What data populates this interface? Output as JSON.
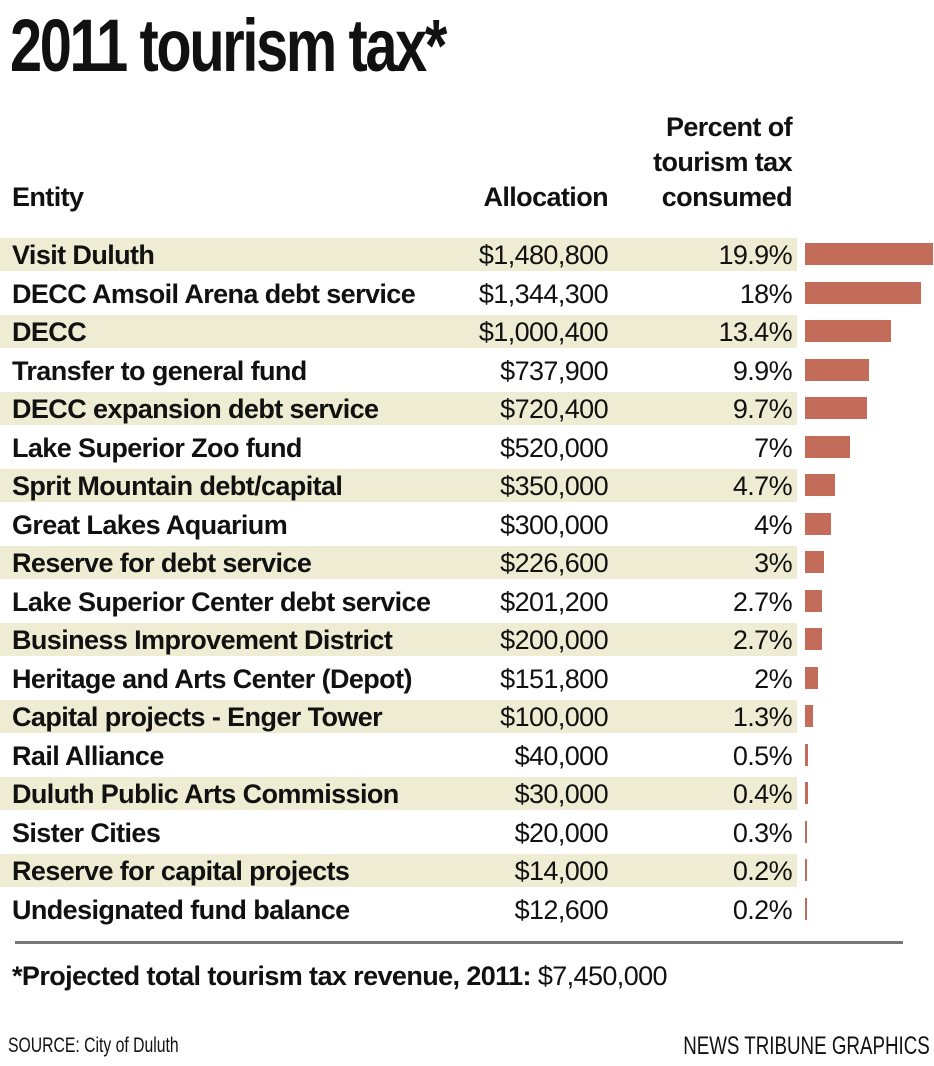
{
  "title": "2011 tourism tax*",
  "headers": {
    "entity": "Entity",
    "allocation": "Allocation",
    "percent": [
      "Percent of",
      "tourism tax",
      "consumed"
    ]
  },
  "colors": {
    "bar": "#c46c5a",
    "row_shade": "#eeedd3",
    "rule": "#777777"
  },
  "chart_data": {
    "type": "bar",
    "orientation": "horizontal",
    "categories": [
      "Visit Duluth",
      "DECC Amsoil Arena debt service",
      "DECC",
      "Transfer to general fund",
      "DECC expansion debt service",
      "Lake Superior Zoo fund",
      "Sprit Mountain debt/capital",
      "Great Lakes Aquarium",
      "Reserve for debt service",
      "Lake Superior Center debt service",
      "Business Improvement District",
      "Heritage and Arts Center (Depot)",
      "Capital projects - Enger Tower",
      "Rail Alliance",
      "Duluth Public Arts Commission",
      "Sister Cities",
      "Reserve for capital projects",
      "Undesignated fund balance"
    ],
    "allocations": [
      "$1,480,800",
      "$1,344,300",
      "$1,000,400",
      "$737,900",
      "$720,400",
      "$520,000",
      "$350,000",
      "$300,000",
      "$226,600",
      "$201,200",
      "$200,000",
      "$151,800",
      "$100,000",
      "$40,000",
      "$30,000",
      "$20,000",
      "$14,000",
      "$12,600"
    ],
    "percent_labels": [
      "19.9%",
      "18%",
      "13.4%",
      "9.9%",
      "9.7%",
      "7%",
      "4.7%",
      "4%",
      "3%",
      "2.7%",
      "2.7%",
      "2%",
      "1.3%",
      "0.5%",
      "0.4%",
      "0.3%",
      "0.2%",
      "0.2%"
    ],
    "values": [
      19.9,
      18,
      13.4,
      9.9,
      9.7,
      7,
      4.7,
      4,
      3,
      2.7,
      2.7,
      2,
      1.3,
      0.5,
      0.4,
      0.3,
      0.2,
      0.2
    ],
    "xlim": [
      0,
      19.9
    ],
    "grid": false
  },
  "footnote": {
    "label": "*Projected total tourism tax revenue, 2011:",
    "value": "$7,450,000"
  },
  "source": "SOURCE: City of Duluth",
  "credit": "NEWS TRIBUNE GRAPHICS"
}
